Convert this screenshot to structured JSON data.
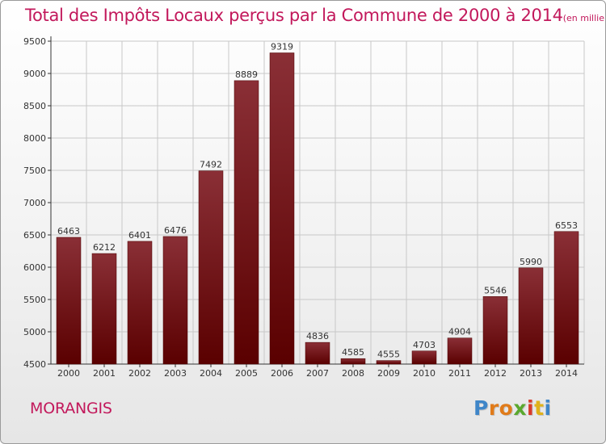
{
  "header": {
    "title": "Total des Impôts Locaux perçus par la Commune de 2000 à 2014",
    "unit": "(en milliers d'€)"
  },
  "commune_name": "MORANGIS",
  "logo": {
    "letters": [
      "P",
      "r",
      "o",
      "x",
      "i",
      "t",
      "i"
    ],
    "colors": [
      "#3f86c8",
      "#e07b1a",
      "#e07b1a",
      "#5aa82e",
      "#d93a2a",
      "#e0b21a",
      "#3f86c8"
    ]
  },
  "colors": {
    "accent": "#c2185b",
    "bar_top": "#8a2f36",
    "bar_bottom": "#5a0000",
    "grid": "#c8c8c8"
  },
  "chart_data": {
    "type": "bar",
    "title": "Total des Impôts Locaux perçus par la Commune de 2000 à 2014",
    "categories": [
      "2000",
      "2001",
      "2002",
      "2003",
      "2004",
      "2005",
      "2006",
      "2007",
      "2008",
      "2009",
      "2010",
      "2011",
      "2012",
      "2013",
      "2014"
    ],
    "values": [
      6463,
      6212,
      6401,
      6476,
      7492,
      8889,
      9319,
      4836,
      4585,
      4555,
      4703,
      4904,
      5546,
      5990,
      6553
    ],
    "ylim": [
      4500,
      9500
    ],
    "yticks": [
      4500,
      5000,
      5500,
      6000,
      6500,
      7000,
      7500,
      8000,
      8500,
      9000,
      9500
    ],
    "grid": true,
    "data_labels": true
  }
}
